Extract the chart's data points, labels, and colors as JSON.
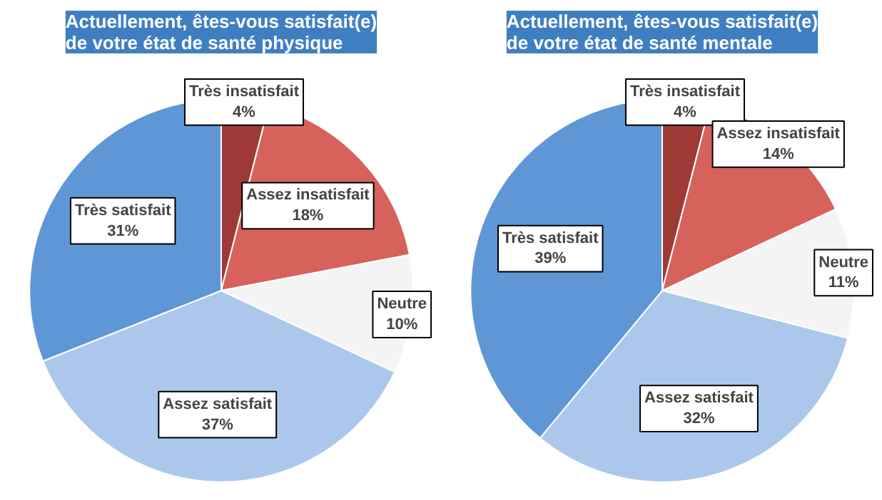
{
  "chart_data": [
    {
      "type": "pie",
      "title": "Actuellement, êtes-vous satisfait(e)\nde votre état de santé physique",
      "categories": [
        "Très insatisfait",
        "Assez insatisfait",
        "Neutre",
        "Assez satisfait",
        "Très satisfait"
      ],
      "values": [
        4,
        18,
        10,
        37,
        31
      ],
      "value_labels": [
        "4%",
        "18%",
        "10%",
        "37%",
        "31%"
      ],
      "colors": [
        "#9e3a35",
        "#d7625c",
        "#f4f4f4",
        "#abc8ec",
        "#5f97d6"
      ]
    },
    {
      "type": "pie",
      "title": "Actuellement, êtes-vous satisfait(e)\nde votre état de santé mentale",
      "categories": [
        "Très insatisfait",
        "Assez insatisfait",
        "Neutre",
        "Assez satisfait",
        "Très satisfait"
      ],
      "values": [
        4,
        14,
        11,
        32,
        39
      ],
      "value_labels": [
        "4%",
        "14%",
        "11%",
        "32%",
        "39%"
      ],
      "colors": [
        "#9e3a35",
        "#d7625c",
        "#f4f4f4",
        "#abc8ec",
        "#5f97d6"
      ]
    }
  ]
}
